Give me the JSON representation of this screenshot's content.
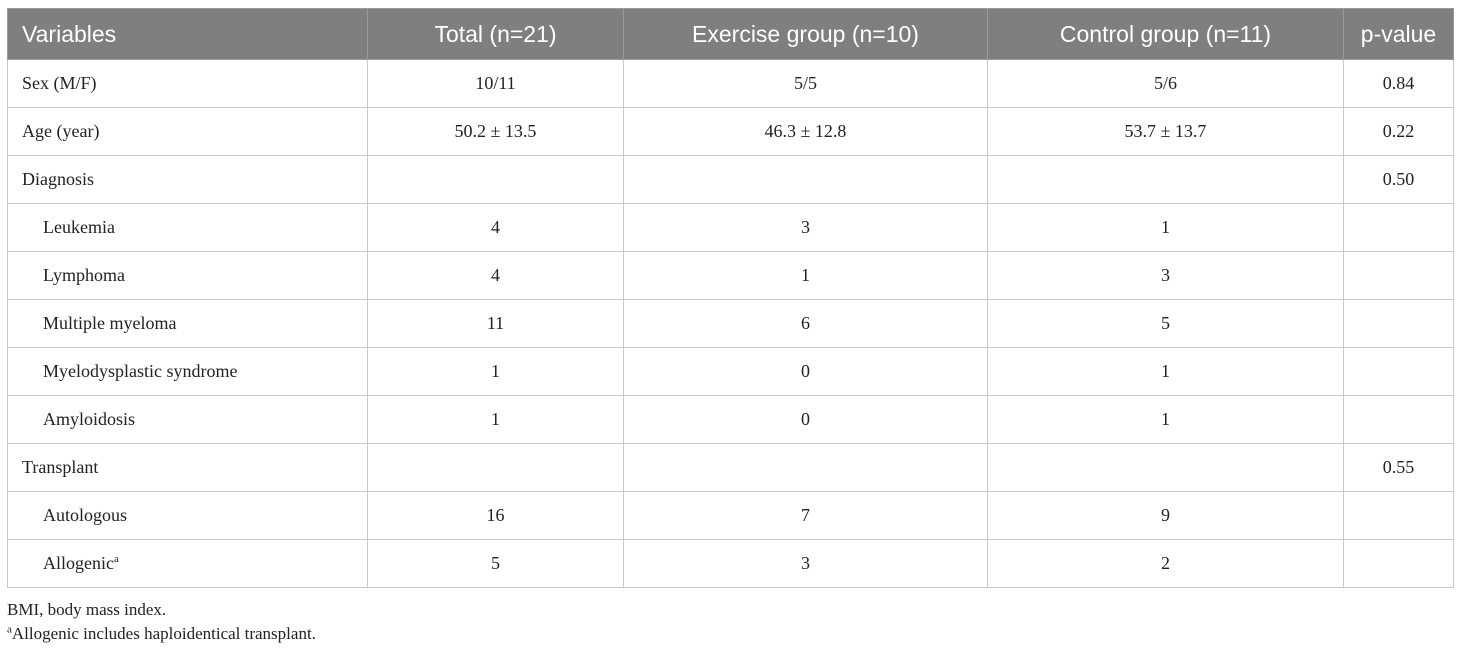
{
  "table": {
    "headers": [
      "Variables",
      "Total (n=21)",
      "Exercise group (n=10)",
      "Control group (n=11)",
      "p-value"
    ],
    "rows": [
      {
        "label": "Sex (M/F)",
        "sup": "",
        "total": "10/11",
        "exercise": "5/5",
        "control": "5/6",
        "p": "0.84"
      },
      {
        "label": "Age (year)",
        "sup": "",
        "total": "50.2 ± 13.5",
        "exercise": "46.3 ± 12.8",
        "control": "53.7 ± 13.7",
        "p": "0.22"
      },
      {
        "label": "Diagnosis",
        "sup": "",
        "total": "",
        "exercise": "",
        "control": "",
        "p": "0.50"
      },
      {
        "label": "Leukemia",
        "sup": "",
        "total": "4",
        "exercise": "3",
        "control": "1",
        "p": ""
      },
      {
        "label": "Lymphoma",
        "sup": "",
        "total": "4",
        "exercise": "1",
        "control": "3",
        "p": ""
      },
      {
        "label": "Multiple myeloma",
        "sup": "",
        "total": "11",
        "exercise": "6",
        "control": "5",
        "p": ""
      },
      {
        "label": "Myelodysplastic syndrome",
        "sup": "",
        "total": "1",
        "exercise": "0",
        "control": "1",
        "p": ""
      },
      {
        "label": "Amyloidosis",
        "sup": "",
        "total": "1",
        "exercise": "0",
        "control": "1",
        "p": ""
      },
      {
        "label": "Transplant",
        "sup": "",
        "total": "",
        "exercise": "",
        "control": "",
        "p": "0.55"
      },
      {
        "label": "Autologous",
        "sup": "",
        "total": "16",
        "exercise": "7",
        "control": "9",
        "p": ""
      },
      {
        "label": "Allogenic",
        "sup": "a",
        "total": "5",
        "exercise": "3",
        "control": "2",
        "p": ""
      }
    ]
  },
  "footnotes": {
    "abbreviation": "BMI, body mass index.",
    "note_marker": "a",
    "note_text": "Allogenic includes haploidentical transplant."
  }
}
